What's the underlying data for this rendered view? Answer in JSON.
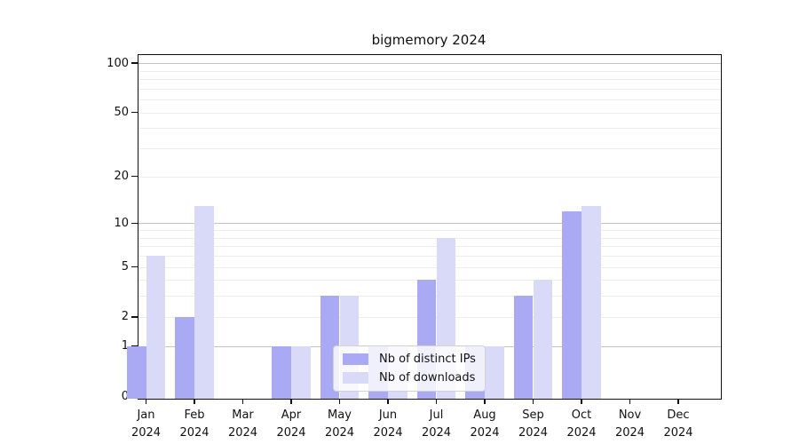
{
  "title": "bigmemory 2024",
  "colors": {
    "distinct_ips_bar": "#a9a9f4",
    "downloads_bar": "#d9d9f8",
    "major_gridline": "#c3c3c3",
    "minor_gridline": "#ededed",
    "axis_spine": "#111111"
  },
  "axes": {
    "y_tick_labels": [
      "0",
      "1",
      "2",
      "5",
      "10",
      "20",
      "50",
      "100"
    ],
    "x_months": [
      {
        "month": "Jan",
        "year": "2024"
      },
      {
        "month": "Feb",
        "year": "2024"
      },
      {
        "month": "Mar",
        "year": "2024"
      },
      {
        "month": "Apr",
        "year": "2024"
      },
      {
        "month": "May",
        "year": "2024"
      },
      {
        "month": "Jun",
        "year": "2024"
      },
      {
        "month": "Jul",
        "year": "2024"
      },
      {
        "month": "Aug",
        "year": "2024"
      },
      {
        "month": "Sep",
        "year": "2024"
      },
      {
        "month": "Oct",
        "year": "2024"
      },
      {
        "month": "Nov",
        "year": "2024"
      },
      {
        "month": "Dec",
        "year": "2024"
      }
    ]
  },
  "legend": {
    "items": [
      {
        "label": "Nb of distinct IPs",
        "color": "#a9a9f4"
      },
      {
        "label": "Nb of downloads",
        "color": "#d9d9f8"
      }
    ]
  },
  "chart_data": {
    "type": "bar",
    "title": "bigmemory 2024",
    "categories": [
      "Jan 2024",
      "Feb 2024",
      "Mar 2024",
      "Apr 2024",
      "May 2024",
      "Jun 2024",
      "Jul 2024",
      "Aug 2024",
      "Sep 2024",
      "Oct 2024",
      "Nov 2024",
      "Dec 2024"
    ],
    "series": [
      {
        "name": "Nb of distinct IPs",
        "color": "#a9a9f4",
        "values": [
          1,
          2,
          0,
          1,
          3,
          1,
          4,
          1,
          3,
          12,
          0,
          0
        ]
      },
      {
        "name": "Nb of downloads",
        "color": "#d9d9f8",
        "values": [
          6,
          13,
          0,
          1,
          3,
          1,
          8,
          1,
          4,
          13,
          0,
          0
        ]
      }
    ],
    "xlabel": "",
    "ylabel": "",
    "yscale": "log1p",
    "y_tick_values": [
      0,
      1,
      2,
      5,
      10,
      20,
      50,
      100
    ],
    "y_minor_gridline_values": [
      2,
      3,
      4,
      5,
      6,
      7,
      8,
      9,
      20,
      30,
      40,
      50,
      60,
      70,
      80,
      90
    ],
    "y_major_gridline_values": [
      1,
      10,
      100
    ],
    "ylim": [
      0,
      113
    ],
    "grid": "horizontal",
    "legend_position": "lower center"
  }
}
